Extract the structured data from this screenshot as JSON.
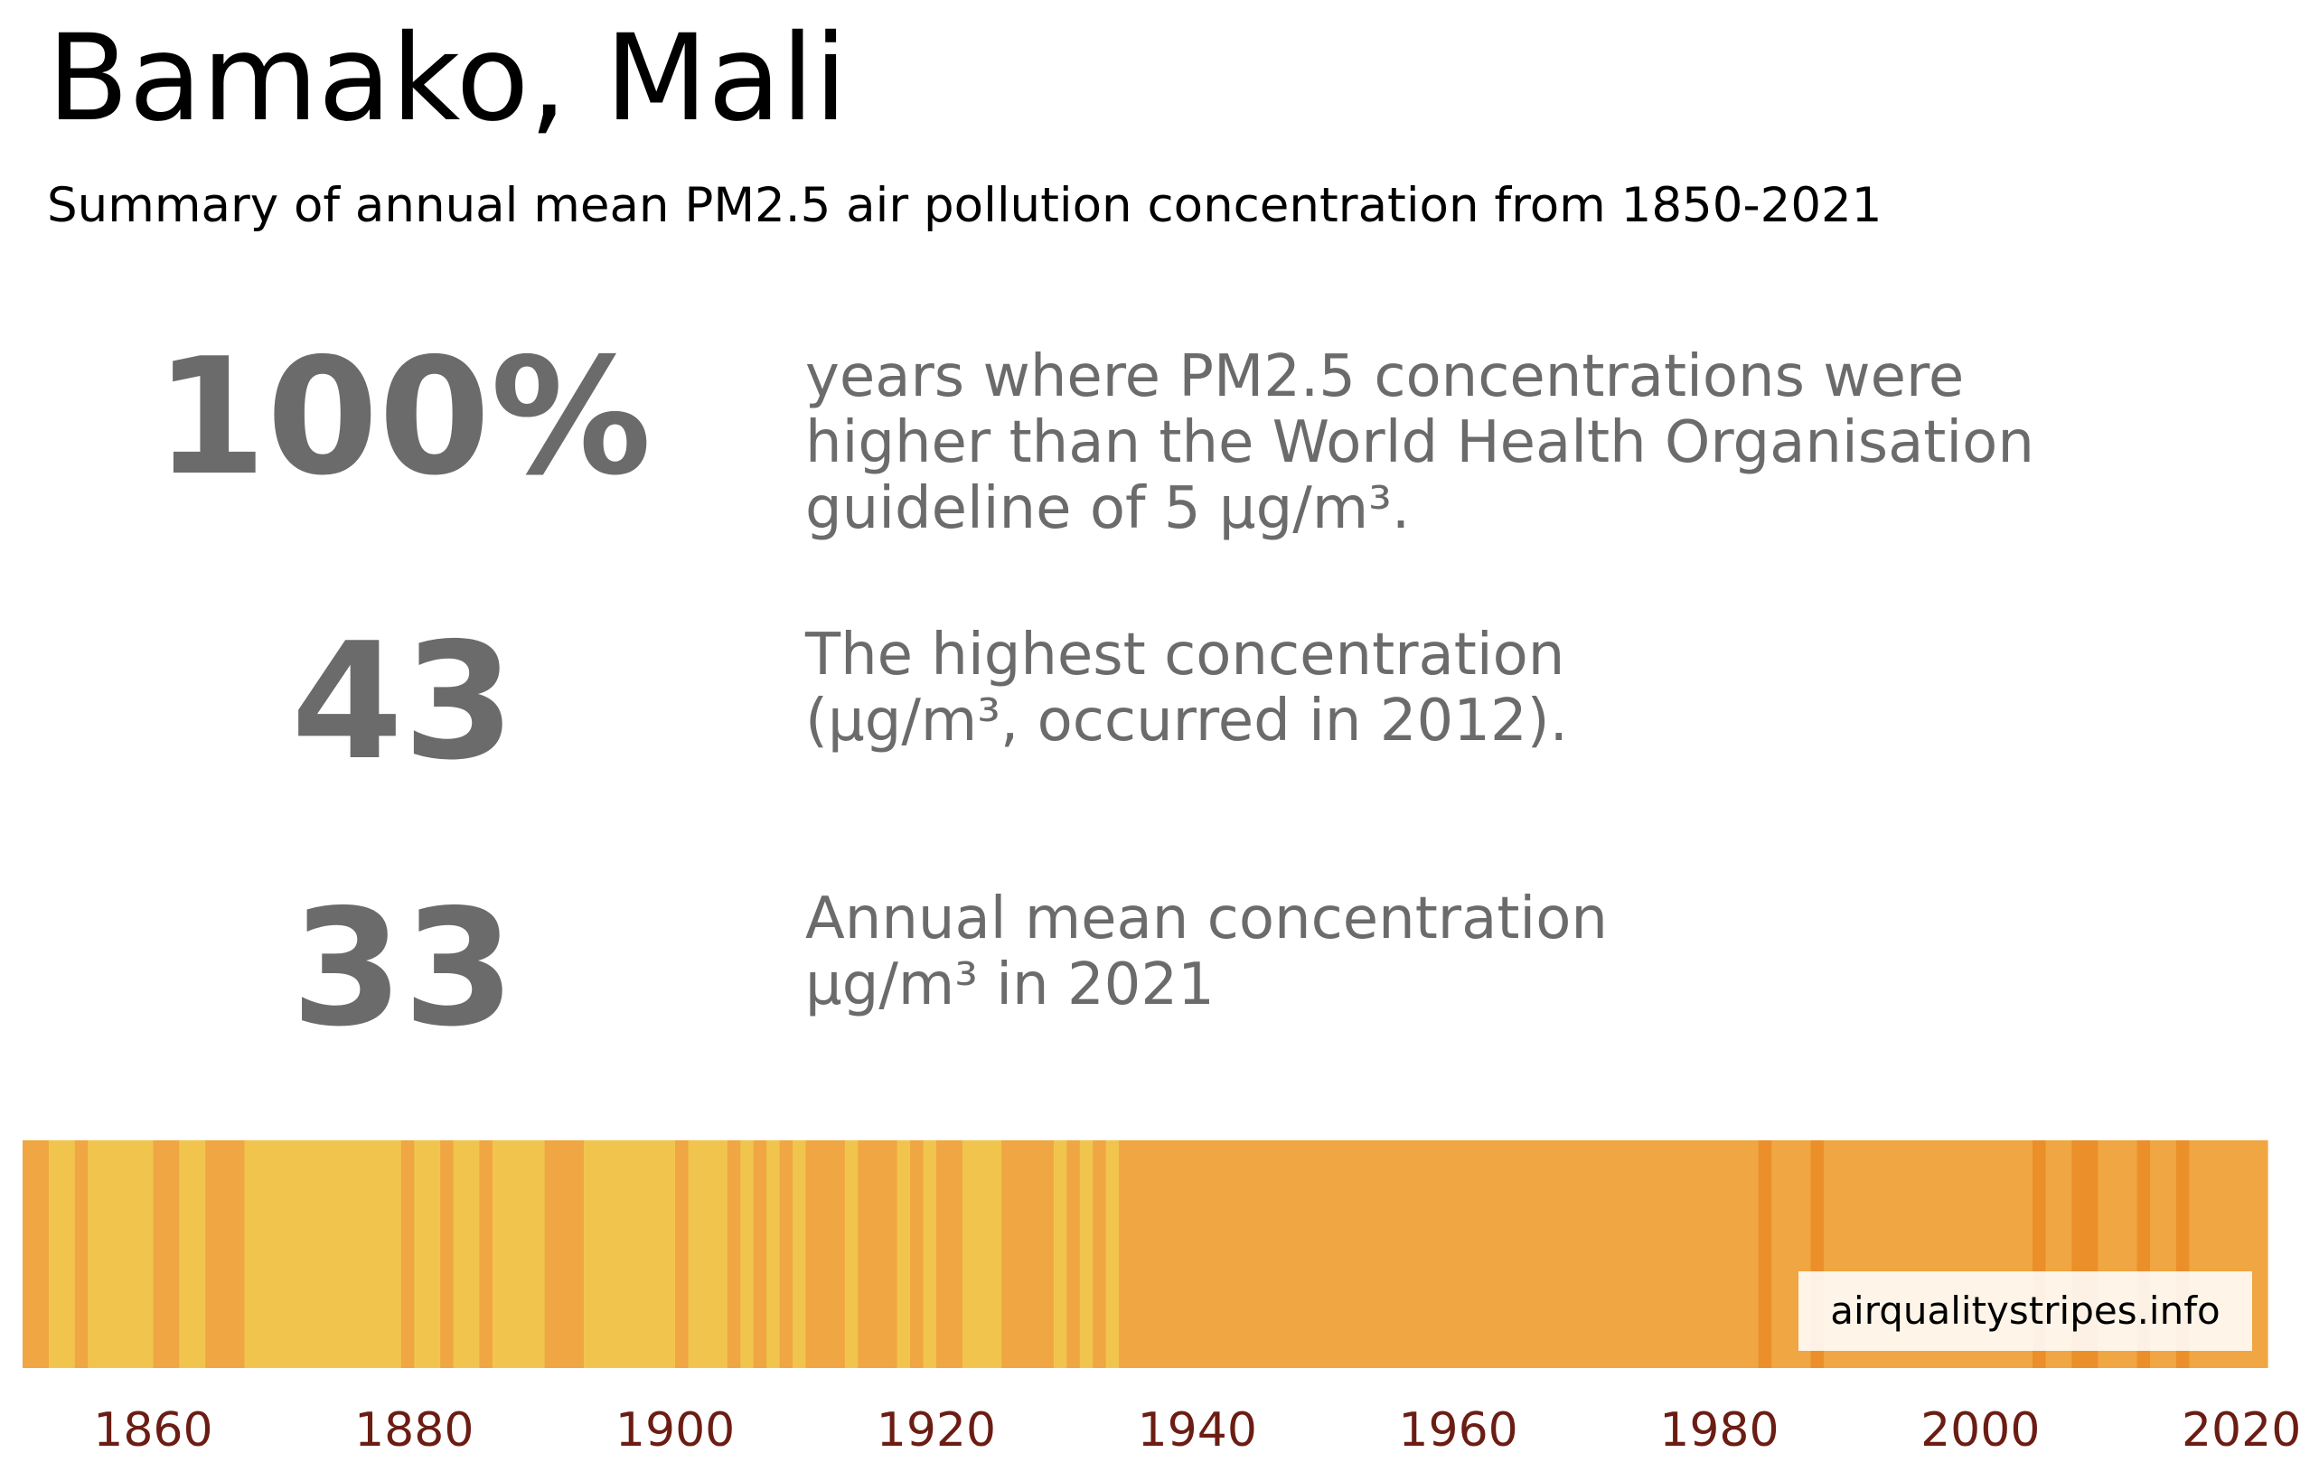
{
  "page": {
    "title": "Bamako, Mali",
    "subtitle": "Summary of annual mean PM2.5 air pollution concentration from 1850-2021",
    "credit": "airqualitystripes.info"
  },
  "stats": [
    {
      "value": "100%",
      "lines": [
        "years where PM2.5 concentrations were",
        "higher than the World Health Organisation",
        "guideline of 5 µg/m³."
      ]
    },
    {
      "value": "43",
      "lines": [
        "The highest concentration",
        "(µg/m³, occurred in 2012)."
      ]
    },
    {
      "value": "33",
      "lines": [
        "Annual mean concentration",
        "µg/m³ in 2021"
      ]
    }
  ],
  "colors": {
    "stats_text": "#6b6b6b",
    "tick_label": "#6b1d14",
    "stripe_light": "#f1c54d",
    "stripe_mid": "#f0a642",
    "stripe_dark": "#eb8f2a"
  },
  "chart_data": {
    "type": "heatmap",
    "xlim": [
      1850,
      2022
    ],
    "ticks": [
      "1860",
      "1880",
      "1900",
      "1920",
      "1940",
      "1960",
      "1980",
      "2000",
      "2020"
    ],
    "tick_values": [
      1860,
      1880,
      1900,
      1920,
      1940,
      1960,
      1980,
      2000,
      2020
    ],
    "levels": [
      "light",
      "mid",
      "dark"
    ],
    "segments": [
      {
        "start": 1850,
        "end": 1852,
        "level": "mid"
      },
      {
        "start": 1852,
        "end": 1854,
        "level": "light"
      },
      {
        "start": 1854,
        "end": 1855,
        "level": "mid"
      },
      {
        "start": 1855,
        "end": 1860,
        "level": "light"
      },
      {
        "start": 1860,
        "end": 1862,
        "level": "mid"
      },
      {
        "start": 1862,
        "end": 1864,
        "level": "light"
      },
      {
        "start": 1864,
        "end": 1867,
        "level": "mid"
      },
      {
        "start": 1867,
        "end": 1879,
        "level": "light"
      },
      {
        "start": 1879,
        "end": 1880,
        "level": "mid"
      },
      {
        "start": 1880,
        "end": 1882,
        "level": "light"
      },
      {
        "start": 1882,
        "end": 1883,
        "level": "mid"
      },
      {
        "start": 1883,
        "end": 1885,
        "level": "light"
      },
      {
        "start": 1885,
        "end": 1886,
        "level": "mid"
      },
      {
        "start": 1886,
        "end": 1890,
        "level": "light"
      },
      {
        "start": 1890,
        "end": 1893,
        "level": "mid"
      },
      {
        "start": 1893,
        "end": 1900,
        "level": "light"
      },
      {
        "start": 1900,
        "end": 1901,
        "level": "mid"
      },
      {
        "start": 1901,
        "end": 1904,
        "level": "light"
      },
      {
        "start": 1904,
        "end": 1905,
        "level": "mid"
      },
      {
        "start": 1905,
        "end": 1906,
        "level": "light"
      },
      {
        "start": 1906,
        "end": 1907,
        "level": "mid"
      },
      {
        "start": 1907,
        "end": 1908,
        "level": "light"
      },
      {
        "start": 1908,
        "end": 1909,
        "level": "mid"
      },
      {
        "start": 1909,
        "end": 1910,
        "level": "light"
      },
      {
        "start": 1910,
        "end": 1913,
        "level": "mid"
      },
      {
        "start": 1913,
        "end": 1914,
        "level": "light"
      },
      {
        "start": 1914,
        "end": 1917,
        "level": "mid"
      },
      {
        "start": 1917,
        "end": 1918,
        "level": "light"
      },
      {
        "start": 1918,
        "end": 1919,
        "level": "mid"
      },
      {
        "start": 1919,
        "end": 1920,
        "level": "light"
      },
      {
        "start": 1920,
        "end": 1922,
        "level": "mid"
      },
      {
        "start": 1922,
        "end": 1925,
        "level": "light"
      },
      {
        "start": 1925,
        "end": 1929,
        "level": "mid"
      },
      {
        "start": 1929,
        "end": 1930,
        "level": "light"
      },
      {
        "start": 1930,
        "end": 1931,
        "level": "mid"
      },
      {
        "start": 1931,
        "end": 1932,
        "level": "light"
      },
      {
        "start": 1932,
        "end": 1933,
        "level": "mid"
      },
      {
        "start": 1933,
        "end": 1934,
        "level": "light"
      },
      {
        "start": 1934,
        "end": 1983,
        "level": "mid"
      },
      {
        "start": 1983,
        "end": 1984,
        "level": "dark"
      },
      {
        "start": 1984,
        "end": 1987,
        "level": "mid"
      },
      {
        "start": 1987,
        "end": 1988,
        "level": "dark"
      },
      {
        "start": 1988,
        "end": 2004,
        "level": "mid"
      },
      {
        "start": 2004,
        "end": 2005,
        "level": "dark"
      },
      {
        "start": 2005,
        "end": 2007,
        "level": "mid"
      },
      {
        "start": 2007,
        "end": 2009,
        "level": "dark"
      },
      {
        "start": 2009,
        "end": 2012,
        "level": "mid"
      },
      {
        "start": 2012,
        "end": 2013,
        "level": "dark"
      },
      {
        "start": 2013,
        "end": 2015,
        "level": "mid"
      },
      {
        "start": 2015,
        "end": 2016,
        "level": "dark"
      },
      {
        "start": 2016,
        "end": 2022,
        "level": "mid"
      }
    ]
  }
}
